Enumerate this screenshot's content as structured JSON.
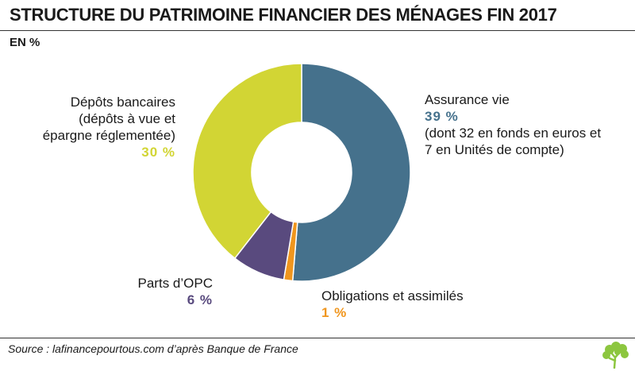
{
  "header": {
    "title": "STRUCTURE DU PATRIMOINE FINANCIER DES MÉNAGES FIN 2017",
    "unit": "EN %"
  },
  "chart_data": {
    "type": "pie",
    "variant": "donut",
    "title": "STRUCTURE DU PATRIMOINE FINANCIER DES MÉNAGES FIN 2017",
    "unit": "EN %",
    "slices": [
      {
        "label": "Assurance vie",
        "value": 39,
        "value_label": "39 %",
        "detail": [
          "(dont 32 en fonds en euros et",
          "7 en Unités de compte)"
        ],
        "color": "#45718c"
      },
      {
        "label": "Obligations et assimilés",
        "value": 1,
        "value_label": "1 %",
        "color": "#f0961e"
      },
      {
        "label": "Parts d’OPC",
        "value": 6,
        "value_label": "6 %",
        "color": "#594a7e"
      },
      {
        "label": "Dépôts bancaires",
        "value": 30,
        "value_label": "30 %",
        "detail": [
          "(dépôts à vue et",
          "épargne réglementée)"
        ],
        "color": "#d2d534"
      }
    ],
    "start_angle": "12 o'clock",
    "direction": "clockwise"
  },
  "footer": {
    "source": "Source : lafinancepourtous.com d’après Banque de France",
    "logo_icon": "tree-icon",
    "logo_color": "#8cc63f"
  }
}
